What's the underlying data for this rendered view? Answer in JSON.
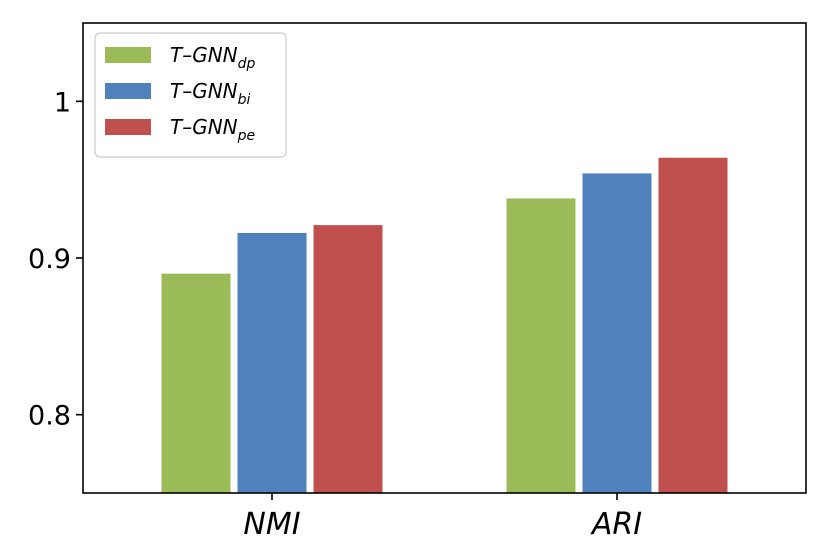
{
  "chart_data": {
    "type": "bar",
    "categories": [
      "NMI",
      "ARI"
    ],
    "series": [
      {
        "name": "T–GNN",
        "subscript": "dp",
        "color": "#9bbb59",
        "values": [
          0.89,
          0.938
        ]
      },
      {
        "name": "T–GNN",
        "subscript": "bi",
        "color": "#4f81bd",
        "values": [
          0.916,
          0.954
        ]
      },
      {
        "name": "T–GNN",
        "subscript": "pe",
        "color": "#c0504d",
        "values": [
          0.921,
          0.964
        ]
      }
    ],
    "ylim": [
      0.75,
      1.05
    ],
    "yticks": [
      0.8,
      0.9,
      1
    ],
    "ytick_labels": [
      "0.8",
      "0.9",
      "1"
    ],
    "title": "",
    "xlabel": "",
    "ylabel": "",
    "legend_position": "top-left",
    "grid": false
  }
}
